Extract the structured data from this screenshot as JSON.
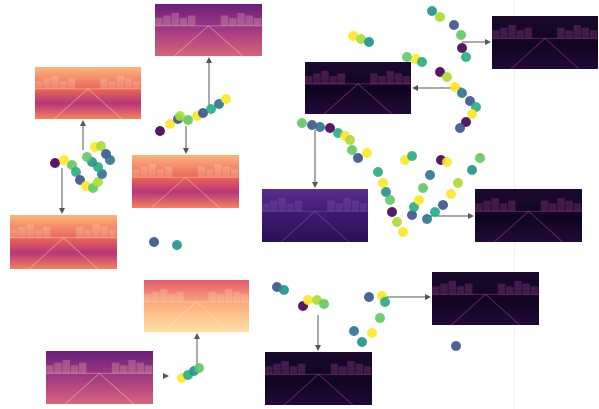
{
  "palette": {
    "point_colors": [
      "#440154",
      "#3b528b",
      "#21918c",
      "#5ec962",
      "#fde725",
      "#2c728e",
      "#27ad81",
      "#aadc32"
    ],
    "arrow": "#555555"
  },
  "thumbnails": [
    {
      "id": "thumb-top-center",
      "style": "magma-mid",
      "connector": "arrow-up"
    },
    {
      "id": "thumb-left-upper",
      "style": "magma-bright",
      "connector": "arrow-up"
    },
    {
      "id": "thumb-left-center",
      "style": "magma-bright",
      "connector": "arrow-down"
    },
    {
      "id": "thumb-left-lower",
      "style": "magma-bright",
      "connector": "arrow-down"
    },
    {
      "id": "thumb-bottom-left-top",
      "style": "magma-hot",
      "connector": "arrow-up"
    },
    {
      "id": "thumb-bottom-left-bottom",
      "style": "magma-mid",
      "connector": "arrow-right"
    },
    {
      "id": "thumb-right-top",
      "style": "magma-dark",
      "connector": "arrow-right"
    },
    {
      "id": "thumb-right-upper-mid",
      "style": "magma-dark",
      "connector": "arrow-left"
    },
    {
      "id": "thumb-right-purple",
      "style": "purple-dim",
      "connector": "arrow-down"
    },
    {
      "id": "thumb-right-mid",
      "style": "magma-dark",
      "connector": "arrow-right"
    },
    {
      "id": "thumb-right-lower",
      "style": "magma-dark",
      "connector": "arrow-right"
    },
    {
      "id": "thumb-bottom-center",
      "style": "magma-dark",
      "connector": "arrow-down"
    }
  ]
}
